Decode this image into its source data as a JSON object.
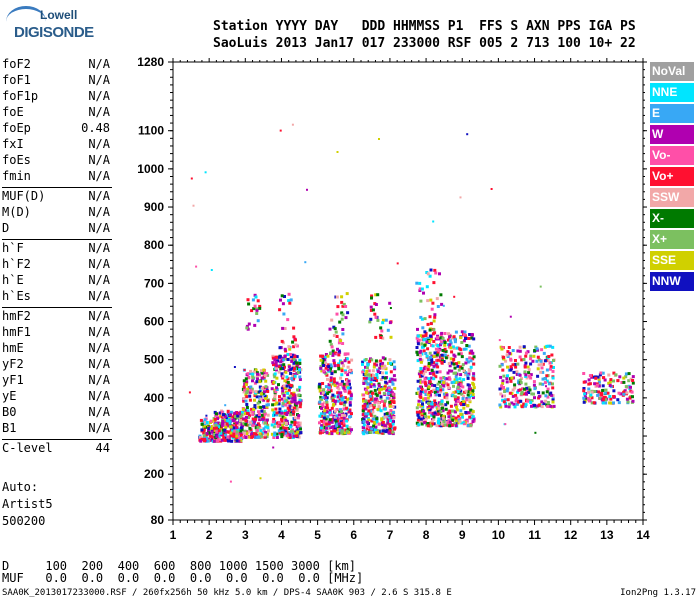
{
  "logo": {
    "line1": "Lowell",
    "line2": "DIGISONDE"
  },
  "header": {
    "labels": "Station YYYY DAY   DDD HHMMSS P1  FFS S AXN PPS IGA PS",
    "values": "SaoLuis 2013 Jan17 017 233000 RSF 005 2 713 100 10+ 22"
  },
  "params": [
    {
      "name": "foF2",
      "value": "N/A"
    },
    {
      "name": "foF1",
      "value": "N/A"
    },
    {
      "name": "foF1p",
      "value": "N/A"
    },
    {
      "name": "foE",
      "value": "N/A"
    },
    {
      "name": "foEp",
      "value": "0.48"
    },
    {
      "name": "fxI",
      "value": "N/A"
    },
    {
      "name": "foEs",
      "value": "N/A"
    },
    {
      "name": "fmin",
      "value": "N/A"
    },
    {
      "name": "MUF(D)",
      "value": "N/A"
    },
    {
      "name": "M(D)",
      "value": "N/A"
    },
    {
      "name": "D",
      "value": "N/A"
    },
    {
      "name": "h`F",
      "value": "N/A"
    },
    {
      "name": "h`F2",
      "value": "N/A"
    },
    {
      "name": "h`E",
      "value": "N/A"
    },
    {
      "name": "h`Es",
      "value": "N/A"
    },
    {
      "name": "hmF2",
      "value": "N/A"
    },
    {
      "name": "hmF1",
      "value": "N/A"
    },
    {
      "name": "hmE",
      "value": "N/A"
    },
    {
      "name": "yF2",
      "value": "N/A"
    },
    {
      "name": "yF1",
      "value": "N/A"
    },
    {
      "name": "yE",
      "value": "N/A"
    },
    {
      "name": "B0",
      "value": "N/A"
    },
    {
      "name": "B1",
      "value": "N/A"
    },
    {
      "name": "C-level",
      "value": "44"
    }
  ],
  "auto": {
    "line1": "Auto:",
    "line2": "Artist5",
    "line3": "500200"
  },
  "chart_data": {
    "type": "scatter",
    "xlim": [
      1,
      14
    ],
    "ylim": [
      80,
      1280
    ],
    "x_ticks": [
      1,
      2,
      3,
      4,
      5,
      6,
      7,
      8,
      9,
      10,
      11,
      12,
      13,
      14
    ],
    "y_ticks": [
      80,
      200,
      300,
      400,
      500,
      600,
      700,
      800,
      900,
      1000,
      1100,
      1280
    ],
    "grid": false,
    "legend": [
      {
        "name": "NoVal",
        "color": "#a0a0a0"
      },
      {
        "name": "NNE",
        "color": "#00e5ff"
      },
      {
        "name": "E",
        "color": "#38a8f5"
      },
      {
        "name": "W",
        "color": "#b000b0"
      },
      {
        "name": "Vo-",
        "color": "#ff4fa8"
      },
      {
        "name": "Vo+",
        "color": "#ff1030"
      },
      {
        "name": "SSW",
        "color": "#f2a8a8"
      },
      {
        "name": "X-",
        "color": "#007a00"
      },
      {
        "name": "X+",
        "color": "#7cc060"
      },
      {
        "name": "SSE",
        "color": "#d0d000"
      },
      {
        "name": "NNW",
        "color": "#1010c0"
      }
    ],
    "clusters": [
      {
        "f": [
          1.7,
          2.2
        ],
        "h": [
          290,
          350
        ],
        "n": 120
      },
      {
        "f": [
          2.1,
          2.9
        ],
        "h": [
          290,
          370
        ],
        "n": 260
      },
      {
        "f": [
          2.9,
          3.6
        ],
        "h": [
          300,
          480
        ],
        "n": 260
      },
      {
        "f": [
          3.0,
          3.4
        ],
        "h": [
          580,
          680
        ],
        "n": 20
      },
      {
        "f": [
          3.7,
          4.5
        ],
        "h": [
          300,
          520
        ],
        "n": 360
      },
      {
        "f": [
          3.9,
          4.4
        ],
        "h": [
          520,
          680
        ],
        "n": 30
      },
      {
        "f": [
          5.0,
          5.9
        ],
        "h": [
          310,
          520
        ],
        "n": 360
      },
      {
        "f": [
          5.3,
          5.8
        ],
        "h": [
          520,
          680
        ],
        "n": 40
      },
      {
        "f": [
          6.2,
          7.1
        ],
        "h": [
          310,
          510
        ],
        "n": 360
      },
      {
        "f": [
          6.4,
          7.0
        ],
        "h": [
          560,
          680
        ],
        "n": 30
      },
      {
        "f": [
          7.7,
          9.3
        ],
        "h": [
          330,
          580
        ],
        "n": 640
      },
      {
        "f": [
          7.7,
          8.4
        ],
        "h": [
          580,
          740
        ],
        "n": 40
      },
      {
        "f": [
          10.0,
          11.5
        ],
        "h": [
          380,
          540
        ],
        "n": 260
      },
      {
        "f": [
          12.3,
          13.7
        ],
        "h": [
          390,
          470
        ],
        "n": 150
      }
    ]
  },
  "bottom": {
    "line1": "D     100  200  400  600  800 1000 1500 3000 [km]",
    "line2": "MUF   0.0  0.0  0.0  0.0  0.0  0.0  0.0  0.0 [MHz]"
  },
  "footer": {
    "left": "SAA0K_2013017233000.RSF / 260fx256h 50 kHz 5.0 km / DPS-4 SAA0K 903 / 2.6 S 315.8 E",
    "right": "Ion2Png 1.3.17"
  }
}
